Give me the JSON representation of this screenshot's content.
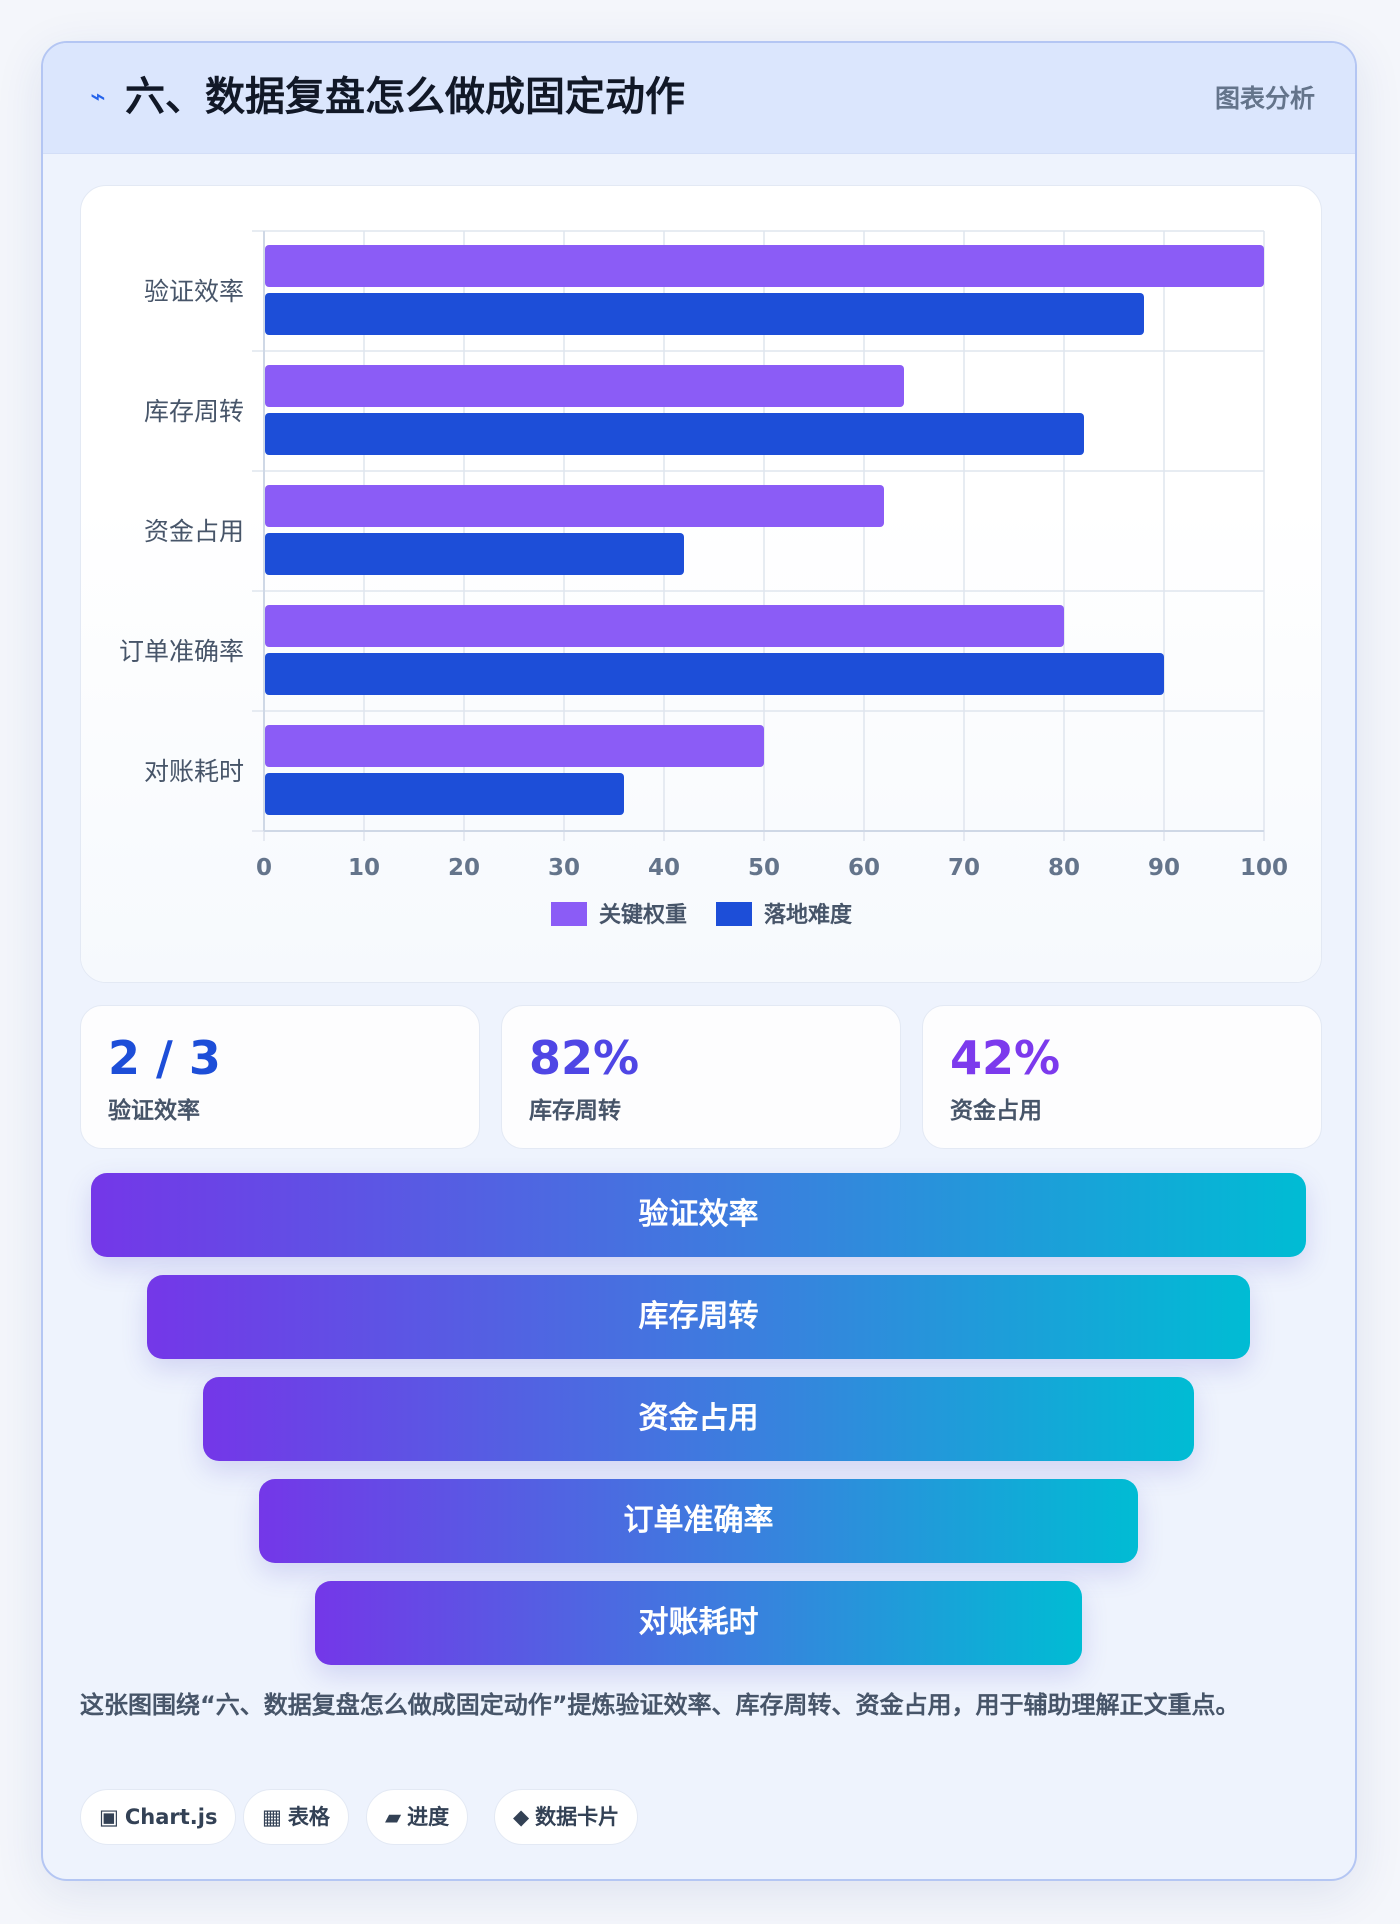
{
  "header": {
    "icon": "lightning-icon",
    "icon_glyph": "⌁",
    "title": "六、数据复盘怎么做成固定动作",
    "badge": "图表分析"
  },
  "chart_data": {
    "type": "bar",
    "orientation": "horizontal",
    "categories": [
      "验证效率",
      "库存周转",
      "资金占用",
      "订单准确率",
      "对账耗时"
    ],
    "series": [
      {
        "name": "关键权重",
        "values": [
          100,
          64,
          62,
          80,
          50
        ],
        "color": "#8b5cf6"
      },
      {
        "name": "落地难度",
        "values": [
          88,
          82,
          42,
          90,
          36
        ],
        "color": "#1d4ed8"
      }
    ],
    "xlim": [
      0,
      100
    ],
    "xticks": [
      0,
      10,
      20,
      30,
      40,
      50,
      60,
      70,
      80,
      90,
      100
    ],
    "grid": true,
    "legend_position": "bottom"
  },
  "stats": [
    {
      "value": "2 / 3",
      "label": "验证效率",
      "color": "#1d4ed8"
    },
    {
      "value": "82%",
      "label": "库存周转",
      "color": "#4f46e5"
    },
    {
      "value": "42%",
      "label": "资金占用",
      "color": "#7c3aed"
    }
  ],
  "funnel": [
    "验证效率",
    "库存周转",
    "资金占用",
    "订单准确率",
    "对账耗时"
  ],
  "caption": "这张图围绕“六、数据复盘怎么做成固定动作”提炼验证效率、库存周转、资金占用，用于辅助理解正文重点。",
  "tags": [
    {
      "icon": "square-icon",
      "glyph": "▣",
      "label": "Chart.js"
    },
    {
      "icon": "grid-icon",
      "glyph": "▦",
      "label": "表格"
    },
    {
      "icon": "progress-bar-icon",
      "glyph": "▰",
      "label": "进度"
    },
    {
      "icon": "diamond-icon",
      "glyph": "◆",
      "label": "数据卡片"
    }
  ]
}
